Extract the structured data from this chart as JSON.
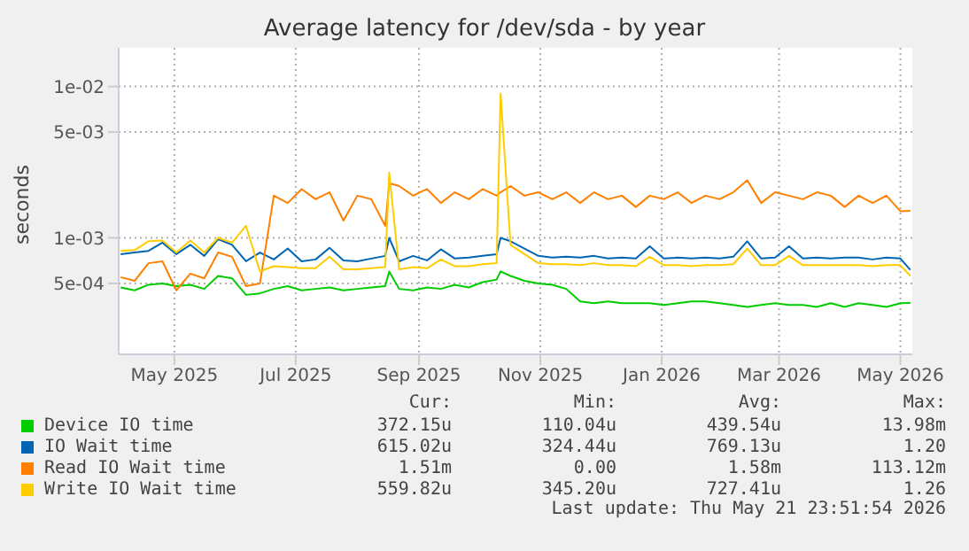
{
  "chart_data": {
    "type": "line",
    "title": "Average latency for /dev/sda - by year",
    "ylabel": "seconds",
    "log": "y",
    "grid": true,
    "legend": "bottom",
    "marker": "none",
    "line_style": "solid",
    "x": [
      "2025-04-19",
      "2025-04-26",
      "2025-05-03",
      "2025-05-10",
      "2025-05-17",
      "2025-05-24",
      "2025-05-31",
      "2025-06-07",
      "2025-06-14",
      "2025-06-21",
      "2025-06-28",
      "2025-07-05",
      "2025-07-12",
      "2025-07-19",
      "2025-07-26",
      "2025-08-02",
      "2025-08-09",
      "2025-08-16",
      "2025-08-23",
      "2025-08-30",
      "2025-09-01",
      "2025-09-06",
      "2025-09-13",
      "2025-09-20",
      "2025-09-27",
      "2025-10-04",
      "2025-10-11",
      "2025-10-18",
      "2025-10-25",
      "2025-10-27",
      "2025-11-01",
      "2025-11-08",
      "2025-11-15",
      "2025-11-22",
      "2025-11-29",
      "2025-12-06",
      "2025-12-13",
      "2025-12-20",
      "2025-12-27",
      "2026-01-03",
      "2026-01-10",
      "2026-01-17",
      "2026-01-24",
      "2026-01-31",
      "2026-02-07",
      "2026-02-14",
      "2026-02-21",
      "2026-02-28",
      "2026-03-07",
      "2026-03-14",
      "2026-03-21",
      "2026-03-28",
      "2026-04-04",
      "2026-04-11",
      "2026-04-18",
      "2026-04-25",
      "2026-05-02",
      "2026-05-09",
      "2026-05-16",
      "2026-05-21"
    ],
    "series": [
      {
        "name": "Device IO time",
        "color": "#00cc00",
        "values": [
          0.00047,
          0.00045,
          0.00049,
          0.0005,
          0.00048,
          0.00049,
          0.00046,
          0.00056,
          0.00054,
          0.00042,
          0.00043,
          0.00046,
          0.00048,
          0.00045,
          0.00046,
          0.00047,
          0.00045,
          0.00046,
          0.00047,
          0.00048,
          0.0006,
          0.00046,
          0.00045,
          0.00047,
          0.00046,
          0.00049,
          0.00047,
          0.00051,
          0.00053,
          0.0006,
          0.00056,
          0.00052,
          0.0005,
          0.00049,
          0.00046,
          0.00038,
          0.00037,
          0.00038,
          0.00037,
          0.00037,
          0.00037,
          0.00036,
          0.00037,
          0.00038,
          0.00038,
          0.00037,
          0.00036,
          0.00035,
          0.00036,
          0.00037,
          0.00036,
          0.00036,
          0.00035,
          0.00037,
          0.00035,
          0.00037,
          0.00036,
          0.00035,
          0.00037,
          0.000372
        ]
      },
      {
        "name": "IO Wait time",
        "color": "#0066b3",
        "values": [
          0.00078,
          0.0008,
          0.00082,
          0.00093,
          0.00078,
          0.0009,
          0.00076,
          0.00098,
          0.0009,
          0.0007,
          0.0008,
          0.00072,
          0.00085,
          0.0007,
          0.00072,
          0.00086,
          0.00071,
          0.0007,
          0.00073,
          0.00076,
          0.001,
          0.0007,
          0.00076,
          0.00071,
          0.00084,
          0.00073,
          0.00074,
          0.00076,
          0.00078,
          0.001,
          0.00095,
          0.00085,
          0.00076,
          0.00074,
          0.00075,
          0.00074,
          0.00076,
          0.00073,
          0.00074,
          0.00073,
          0.00088,
          0.00073,
          0.00074,
          0.00073,
          0.00074,
          0.00073,
          0.00075,
          0.00095,
          0.00073,
          0.00074,
          0.00088,
          0.00073,
          0.00074,
          0.00073,
          0.00074,
          0.00074,
          0.00072,
          0.00074,
          0.00073,
          0.000615
        ]
      },
      {
        "name": "Read IO Wait time",
        "color": "#ff8000",
        "values": [
          0.00055,
          0.00052,
          0.00068,
          0.0007,
          0.00045,
          0.00058,
          0.00054,
          0.0008,
          0.00075,
          0.00048,
          0.0005,
          0.0019,
          0.0017,
          0.0021,
          0.0018,
          0.002,
          0.0013,
          0.0019,
          0.0018,
          0.0012,
          0.0023,
          0.0022,
          0.0019,
          0.0021,
          0.0017,
          0.002,
          0.0018,
          0.0021,
          0.0019,
          0.002,
          0.0022,
          0.0019,
          0.002,
          0.0018,
          0.002,
          0.0017,
          0.002,
          0.0018,
          0.0019,
          0.0016,
          0.0019,
          0.0018,
          0.002,
          0.0017,
          0.0019,
          0.0018,
          0.002,
          0.0024,
          0.0017,
          0.002,
          0.0019,
          0.0018,
          0.002,
          0.0019,
          0.0016,
          0.0019,
          0.0017,
          0.0019,
          0.0015,
          0.00151
        ]
      },
      {
        "name": "Write IO Wait time",
        "color": "#ffcc00",
        "values": [
          0.00082,
          0.00083,
          0.00095,
          0.00096,
          0.0008,
          0.00096,
          0.0008,
          0.001,
          0.00093,
          0.0012,
          0.0006,
          0.00065,
          0.00064,
          0.00063,
          0.00063,
          0.00075,
          0.00062,
          0.00062,
          0.00063,
          0.00064,
          0.0027,
          0.00062,
          0.00064,
          0.00063,
          0.00072,
          0.00065,
          0.00065,
          0.00067,
          0.00068,
          0.009,
          0.0009,
          0.00078,
          0.00068,
          0.00067,
          0.00067,
          0.00066,
          0.00068,
          0.00066,
          0.00066,
          0.00065,
          0.00075,
          0.00066,
          0.00066,
          0.00065,
          0.00066,
          0.00066,
          0.00067,
          0.00085,
          0.00066,
          0.00066,
          0.00076,
          0.00066,
          0.00066,
          0.00066,
          0.00066,
          0.00066,
          0.00065,
          0.00066,
          0.00066,
          0.00056
        ]
      }
    ],
    "xlim": [
      "2025-04-18",
      "2026-05-22"
    ],
    "xticks": [
      {
        "value": "2025-05-16",
        "label": "May 2025"
      },
      {
        "value": "2025-07-16",
        "label": "Jul 2025"
      },
      {
        "value": "2025-09-16",
        "label": "Sep 2025"
      },
      {
        "value": "2025-11-16",
        "label": "Nov 2025"
      },
      {
        "value": "2026-01-16",
        "label": "Jan 2026"
      },
      {
        "value": "2026-03-16",
        "label": "Mar 2026"
      },
      {
        "value": "2026-05-16",
        "label": "May 2026"
      }
    ],
    "ylim": [
      0.00017,
      0.018
    ],
    "yticks": [
      {
        "value": 0.0005,
        "label": "5e-04"
      },
      {
        "value": 0.001,
        "label": "1e-03"
      },
      {
        "value": 0.005,
        "label": "5e-03"
      },
      {
        "value": 0.01,
        "label": "1e-02"
      }
    ],
    "annotations": [
      "Cur:",
      "Min:",
      "Avg:",
      "Max:",
      "372.15u",
      "110.04u",
      "439.54u",
      "13.98m",
      "615.02u",
      "324.44u",
      "769.13u",
      "1.20",
      "1.51m",
      "0.00",
      "1.58m",
      "113.12m",
      "559.82u",
      "345.20u",
      "727.41u",
      "1.26",
      "Last update: Thu May 21 23:51:54 2026"
    ]
  }
}
